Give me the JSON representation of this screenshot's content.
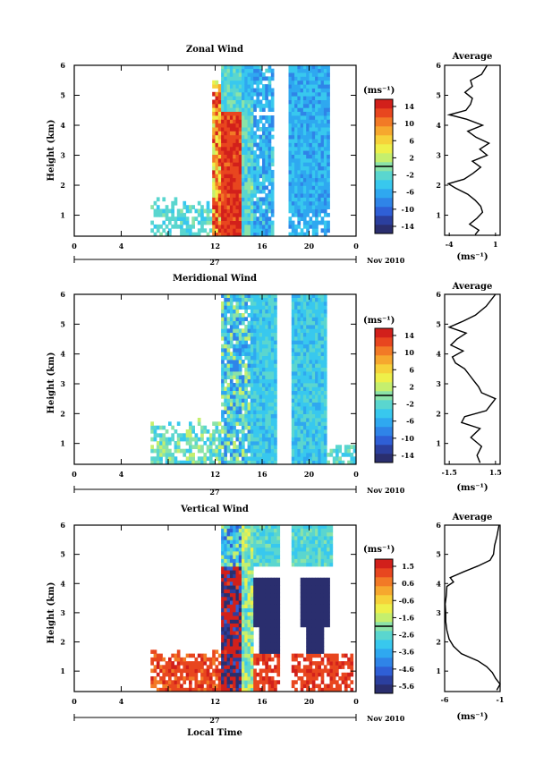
{
  "colors": {
    "colormap": [
      "#2a2e6e",
      "#2b3f9e",
      "#2f5fd6",
      "#2f84e8",
      "#2fa8f0",
      "#38c8ee",
      "#5ad6cf",
      "#8be3a8",
      "#c5ef6e",
      "#eef04a",
      "#f6d23a",
      "#f6a82e",
      "#f27a26",
      "#e8461f",
      "#d2201b"
    ],
    "line": "#000000"
  },
  "chart_data": [
    {
      "id": "zonal",
      "type": "heatmap",
      "title": "Zonal Wind",
      "ylabel": "Height (km)",
      "y_ticks": [
        "1",
        "2",
        "3",
        "4",
        "5",
        "6"
      ],
      "x_ticks": [
        "0",
        "4",
        "12",
        "16",
        "20",
        "0"
      ],
      "date_label": "27",
      "month_label": "Nov 2010",
      "xlabel": "",
      "colorbar": {
        "unit": "(ms⁻¹)",
        "labels": [
          "14",
          "10",
          "6",
          "2",
          "-2",
          "-6",
          "-10",
          "-14"
        ],
        "range": [
          -14,
          14
        ]
      },
      "data_summary": {
        "hour_range": [
          0,
          24
        ],
        "height_range_km": [
          0.3,
          6.0
        ],
        "note_missing": "no echoes before about 6 LT and after about 21.5 LT"
      },
      "profile": {
        "title": "Average",
        "xlabel": "(ms⁻¹)",
        "x_ticks": [
          "-4",
          "1"
        ],
        "y_ticks": [
          "1",
          "2",
          "3",
          "4",
          "5",
          "6"
        ],
        "xlim": [
          -4.5,
          1.5
        ],
        "height_km": [
          0.35,
          0.5,
          0.7,
          0.9,
          1.1,
          1.3,
          1.5,
          1.7,
          1.9,
          2.05,
          2.2,
          2.4,
          2.6,
          2.8,
          3.0,
          3.2,
          3.4,
          3.6,
          3.8,
          4.0,
          4.2,
          4.35,
          4.5,
          4.7,
          4.9,
          5.1,
          5.3,
          5.5,
          5.7,
          6.0
        ],
        "values": [
          -1.2,
          -0.8,
          -1.8,
          -1.0,
          -0.4,
          -0.6,
          -1.2,
          -2.0,
          -3.3,
          -4.1,
          -2.4,
          -1.4,
          -0.6,
          -1.5,
          0.1,
          -0.7,
          0.3,
          -1.1,
          -2.0,
          -0.4,
          -2.1,
          -4.0,
          -2.2,
          -1.7,
          -1.5,
          -2.3,
          -1.5,
          -1.7,
          -0.5,
          0.1
        ]
      }
    },
    {
      "id": "meridional",
      "type": "heatmap",
      "title": "Meridional Wind",
      "ylabel": "Height (km)",
      "y_ticks": [
        "1",
        "2",
        "3",
        "4",
        "5",
        "6"
      ],
      "x_ticks": [
        "0",
        "4",
        "12",
        "16",
        "20",
        "0"
      ],
      "date_label": "27",
      "month_label": "Nov 2010",
      "xlabel": "",
      "colorbar": {
        "unit": "(ms⁻¹)",
        "labels": [
          "14",
          "10",
          "6",
          "2",
          "-2",
          "-6",
          "-10",
          "-14"
        ],
        "range": [
          -14,
          14
        ]
      },
      "data_summary": {
        "hour_range": [
          0,
          24
        ],
        "height_range_km": [
          0.3,
          6.0
        ]
      },
      "profile": {
        "title": "Average",
        "xlabel": "(ms⁻¹)",
        "x_ticks": [
          "-1.5",
          "1.5"
        ],
        "y_ticks": [
          "1",
          "2",
          "3",
          "4",
          "5",
          "6"
        ],
        "xlim": [
          -1.8,
          1.8
        ],
        "height_km": [
          0.35,
          0.6,
          0.9,
          1.2,
          1.5,
          1.7,
          1.9,
          2.1,
          2.3,
          2.5,
          2.7,
          2.9,
          3.1,
          3.3,
          3.5,
          3.7,
          3.9,
          4.1,
          4.3,
          4.5,
          4.7,
          4.9,
          5.1,
          5.3,
          5.6,
          6.0
        ],
        "values": [
          0.5,
          0.3,
          0.6,
          -0.1,
          0.5,
          -0.7,
          -0.5,
          0.9,
          1.2,
          1.5,
          0.6,
          0.4,
          0.1,
          -0.2,
          -0.5,
          -1.1,
          -1.3,
          -0.6,
          -1.4,
          -1.0,
          -0.4,
          -1.5,
          -0.6,
          0.2,
          0.9,
          1.5
        ]
      }
    },
    {
      "id": "vertical",
      "type": "heatmap",
      "title": "Vertical Wind",
      "ylabel": "Height (km)",
      "y_ticks": [
        "1",
        "2",
        "3",
        "4",
        "5",
        "6"
      ],
      "x_ticks": [
        "0",
        "4",
        "12",
        "16",
        "20",
        "0"
      ],
      "date_label": "27",
      "month_label": "Nov 2010",
      "xlabel": "Local Time",
      "colorbar": {
        "unit": "(ms⁻¹)",
        "labels": [
          "1.5",
          "0.6",
          "-0.6",
          "-1.6",
          "-2.6",
          "-3.6",
          "-4.6",
          "-5.6"
        ],
        "range": [
          -5.6,
          1.5
        ]
      },
      "data_summary": {
        "hour_range": [
          0,
          24
        ],
        "height_range_km": [
          0.3,
          6.0
        ]
      },
      "profile": {
        "title": "Average",
        "xlabel": "(ms⁻¹)",
        "x_ticks": [
          "-6",
          "-1"
        ],
        "y_ticks": [
          "1",
          "2",
          "3",
          "4",
          "5",
          "6"
        ],
        "xlim": [
          -6,
          -1
        ],
        "height_km": [
          0.35,
          0.55,
          0.75,
          0.95,
          1.15,
          1.35,
          1.6,
          1.85,
          2.1,
          2.4,
          2.7,
          3.0,
          3.3,
          3.6,
          3.9,
          4.05,
          4.2,
          4.4,
          4.6,
          4.8,
          5.0,
          5.3,
          5.6,
          6.0
        ],
        "values": [
          -1.3,
          -1.0,
          -1.4,
          -1.7,
          -2.2,
          -3.0,
          -4.5,
          -5.2,
          -5.6,
          -5.8,
          -5.9,
          -5.9,
          -5.95,
          -5.85,
          -5.8,
          -5.2,
          -5.5,
          -4.3,
          -3.0,
          -1.9,
          -1.6,
          -1.5,
          -1.3,
          -1.1
        ]
      }
    }
  ]
}
